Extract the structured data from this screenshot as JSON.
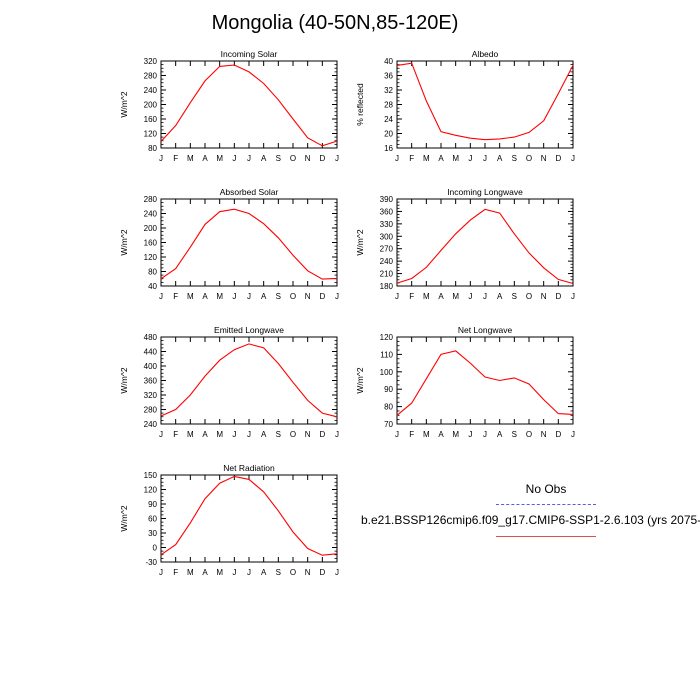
{
  "title": "Mongolia (40-50N,85-120E)",
  "legend": {
    "obs_label": "No Obs",
    "obs_color": "#5a5ae6",
    "run_label": "b.e21.BSSP126cmip6.f09_g17.CMIP6-SSP1-2.6.103 (yrs 2075-",
    "run_color": "#e05050"
  },
  "chart_data": [
    {
      "type": "line",
      "title": "Incoming Solar",
      "ylabel": "W/m^2",
      "x": [
        "J",
        "F",
        "M",
        "A",
        "M",
        "J",
        "J",
        "A",
        "S",
        "O",
        "N",
        "D",
        "J"
      ],
      "ylim": [
        80,
        320
      ],
      "yticks": [
        80,
        120,
        160,
        200,
        240,
        280,
        320
      ],
      "series": [
        {
          "color": "#ff0000",
          "values": [
            98,
            142,
            205,
            265,
            305,
            309,
            290,
            258,
            213,
            160,
            108,
            86,
            99
          ]
        }
      ]
    },
    {
      "type": "line",
      "title": "Albedo",
      "ylabel": "% reflected",
      "x": [
        "J",
        "F",
        "M",
        "A",
        "M",
        "J",
        "J",
        "A",
        "S",
        "O",
        "N",
        "D",
        "J"
      ],
      "ylim": [
        16,
        40
      ],
      "yticks": [
        16,
        20,
        24,
        28,
        32,
        36,
        40
      ],
      "series": [
        {
          "color": "#ff0000",
          "values": [
            38.8,
            39.4,
            29.0,
            20.5,
            19.5,
            18.7,
            18.3,
            18.5,
            19.0,
            20.3,
            23.5,
            31.0,
            38.8
          ]
        }
      ]
    },
    {
      "type": "line",
      "title": "Absorbed Solar",
      "ylabel": "W/m^2",
      "x": [
        "J",
        "F",
        "M",
        "A",
        "M",
        "J",
        "J",
        "A",
        "S",
        "O",
        "N",
        "D",
        "J"
      ],
      "ylim": [
        40,
        280
      ],
      "yticks": [
        40,
        80,
        120,
        160,
        200,
        240,
        280
      ],
      "series": [
        {
          "color": "#ff0000",
          "values": [
            60,
            88,
            147,
            210,
            245,
            252,
            240,
            212,
            173,
            125,
            82,
            59,
            61
          ]
        }
      ]
    },
    {
      "type": "line",
      "title": "Incoming Longwave",
      "ylabel": "W/m^2",
      "x": [
        "J",
        "F",
        "M",
        "A",
        "M",
        "J",
        "J",
        "A",
        "S",
        "O",
        "N",
        "D",
        "J"
      ],
      "ylim": [
        180,
        390
      ],
      "yticks": [
        180,
        210,
        240,
        270,
        300,
        330,
        360,
        390
      ],
      "series": [
        {
          "color": "#ff0000",
          "values": [
            187,
            198,
            225,
            266,
            306,
            339,
            365,
            356,
            306,
            260,
            224,
            196,
            186
          ]
        }
      ]
    },
    {
      "type": "line",
      "title": "Emitted Longwave",
      "ylabel": "W/m^2",
      "x": [
        "J",
        "F",
        "M",
        "A",
        "M",
        "J",
        "J",
        "A",
        "S",
        "O",
        "N",
        "D",
        "J"
      ],
      "ylim": [
        240,
        480
      ],
      "yticks": [
        240,
        280,
        320,
        360,
        400,
        440,
        480
      ],
      "series": [
        {
          "color": "#ff0000",
          "values": [
            262,
            280,
            320,
            372,
            416,
            445,
            461,
            450,
            407,
            355,
            305,
            270,
            260
          ]
        }
      ]
    },
    {
      "type": "line",
      "title": "Net Longwave",
      "ylabel": "W/m^2",
      "x": [
        "J",
        "F",
        "M",
        "A",
        "M",
        "J",
        "J",
        "A",
        "S",
        "O",
        "N",
        "D",
        "J"
      ],
      "ylim": [
        70,
        120
      ],
      "yticks": [
        70,
        80,
        90,
        100,
        110,
        120
      ],
      "series": [
        {
          "color": "#ff0000",
          "values": [
            75,
            82,
            96,
            110,
            112,
            105,
            97,
            95,
            96.5,
            93,
            84,
            76,
            75.5
          ]
        }
      ]
    },
    {
      "type": "line",
      "title": "Net Radiation",
      "ylabel": "W/m^2",
      "x": [
        "J",
        "F",
        "M",
        "A",
        "M",
        "J",
        "J",
        "A",
        "S",
        "O",
        "N",
        "D",
        "J"
      ],
      "ylim": [
        -30,
        150
      ],
      "yticks": [
        -30,
        0,
        30,
        60,
        90,
        120,
        150
      ],
      "series": [
        {
          "color": "#ff0000",
          "values": [
            -15,
            6,
            51,
            101,
            133,
            147,
            141,
            115,
            76,
            32,
            -2,
            -16,
            -13
          ]
        }
      ]
    }
  ]
}
